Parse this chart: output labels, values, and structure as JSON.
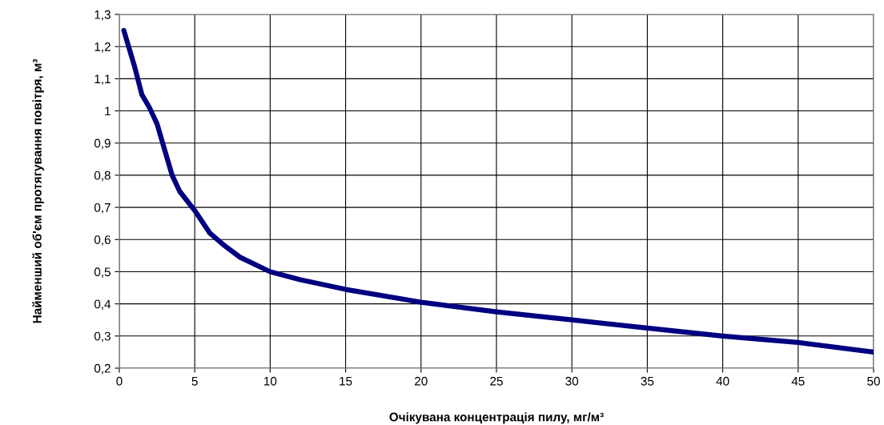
{
  "chart_data": {
    "type": "line",
    "xlabel": "Очікувана концентрація пилу, мг/м³",
    "ylabel": "Найменший об'єм протягування повітря, м³",
    "x": [
      0.3,
      1,
      1.5,
      2,
      2.5,
      3,
      3.5,
      4,
      5,
      6,
      7,
      8,
      10,
      12,
      15,
      20,
      25,
      30,
      35,
      40,
      45,
      50
    ],
    "series": [
      {
        "color": "#000080",
        "values": [
          1.25,
          1.14,
          1.05,
          1.01,
          0.96,
          0.88,
          0.8,
          0.75,
          0.69,
          0.62,
          0.58,
          0.545,
          0.5,
          0.475,
          0.445,
          0.405,
          0.375,
          0.35,
          0.325,
          0.3,
          0.28,
          0.25
        ]
      }
    ],
    "xlim": [
      0,
      50
    ],
    "xticks": [
      0,
      5,
      10,
      15,
      20,
      25,
      30,
      35,
      40,
      45,
      50
    ],
    "ylim": [
      0.2,
      1.3
    ],
    "yticks": [
      {
        "value": 0.2,
        "label": "0,2"
      },
      {
        "value": 0.3,
        "label": "0,3"
      },
      {
        "value": 0.4,
        "label": "0,4"
      },
      {
        "value": 0.5,
        "label": "0,5"
      },
      {
        "value": 0.6,
        "label": "0,6"
      },
      {
        "value": 0.7,
        "label": "0,7"
      },
      {
        "value": 0.8,
        "label": "0,8"
      },
      {
        "value": 0.9,
        "label": "0,9"
      },
      {
        "value": 1,
        "label": "1"
      },
      {
        "value": 1.1,
        "label": "1,1"
      },
      {
        "value": 1.2,
        "label": "1,2"
      },
      {
        "value": 1.3,
        "label": "1,3"
      }
    ],
    "grid": true,
    "marker": "none",
    "line_style": "solid"
  }
}
